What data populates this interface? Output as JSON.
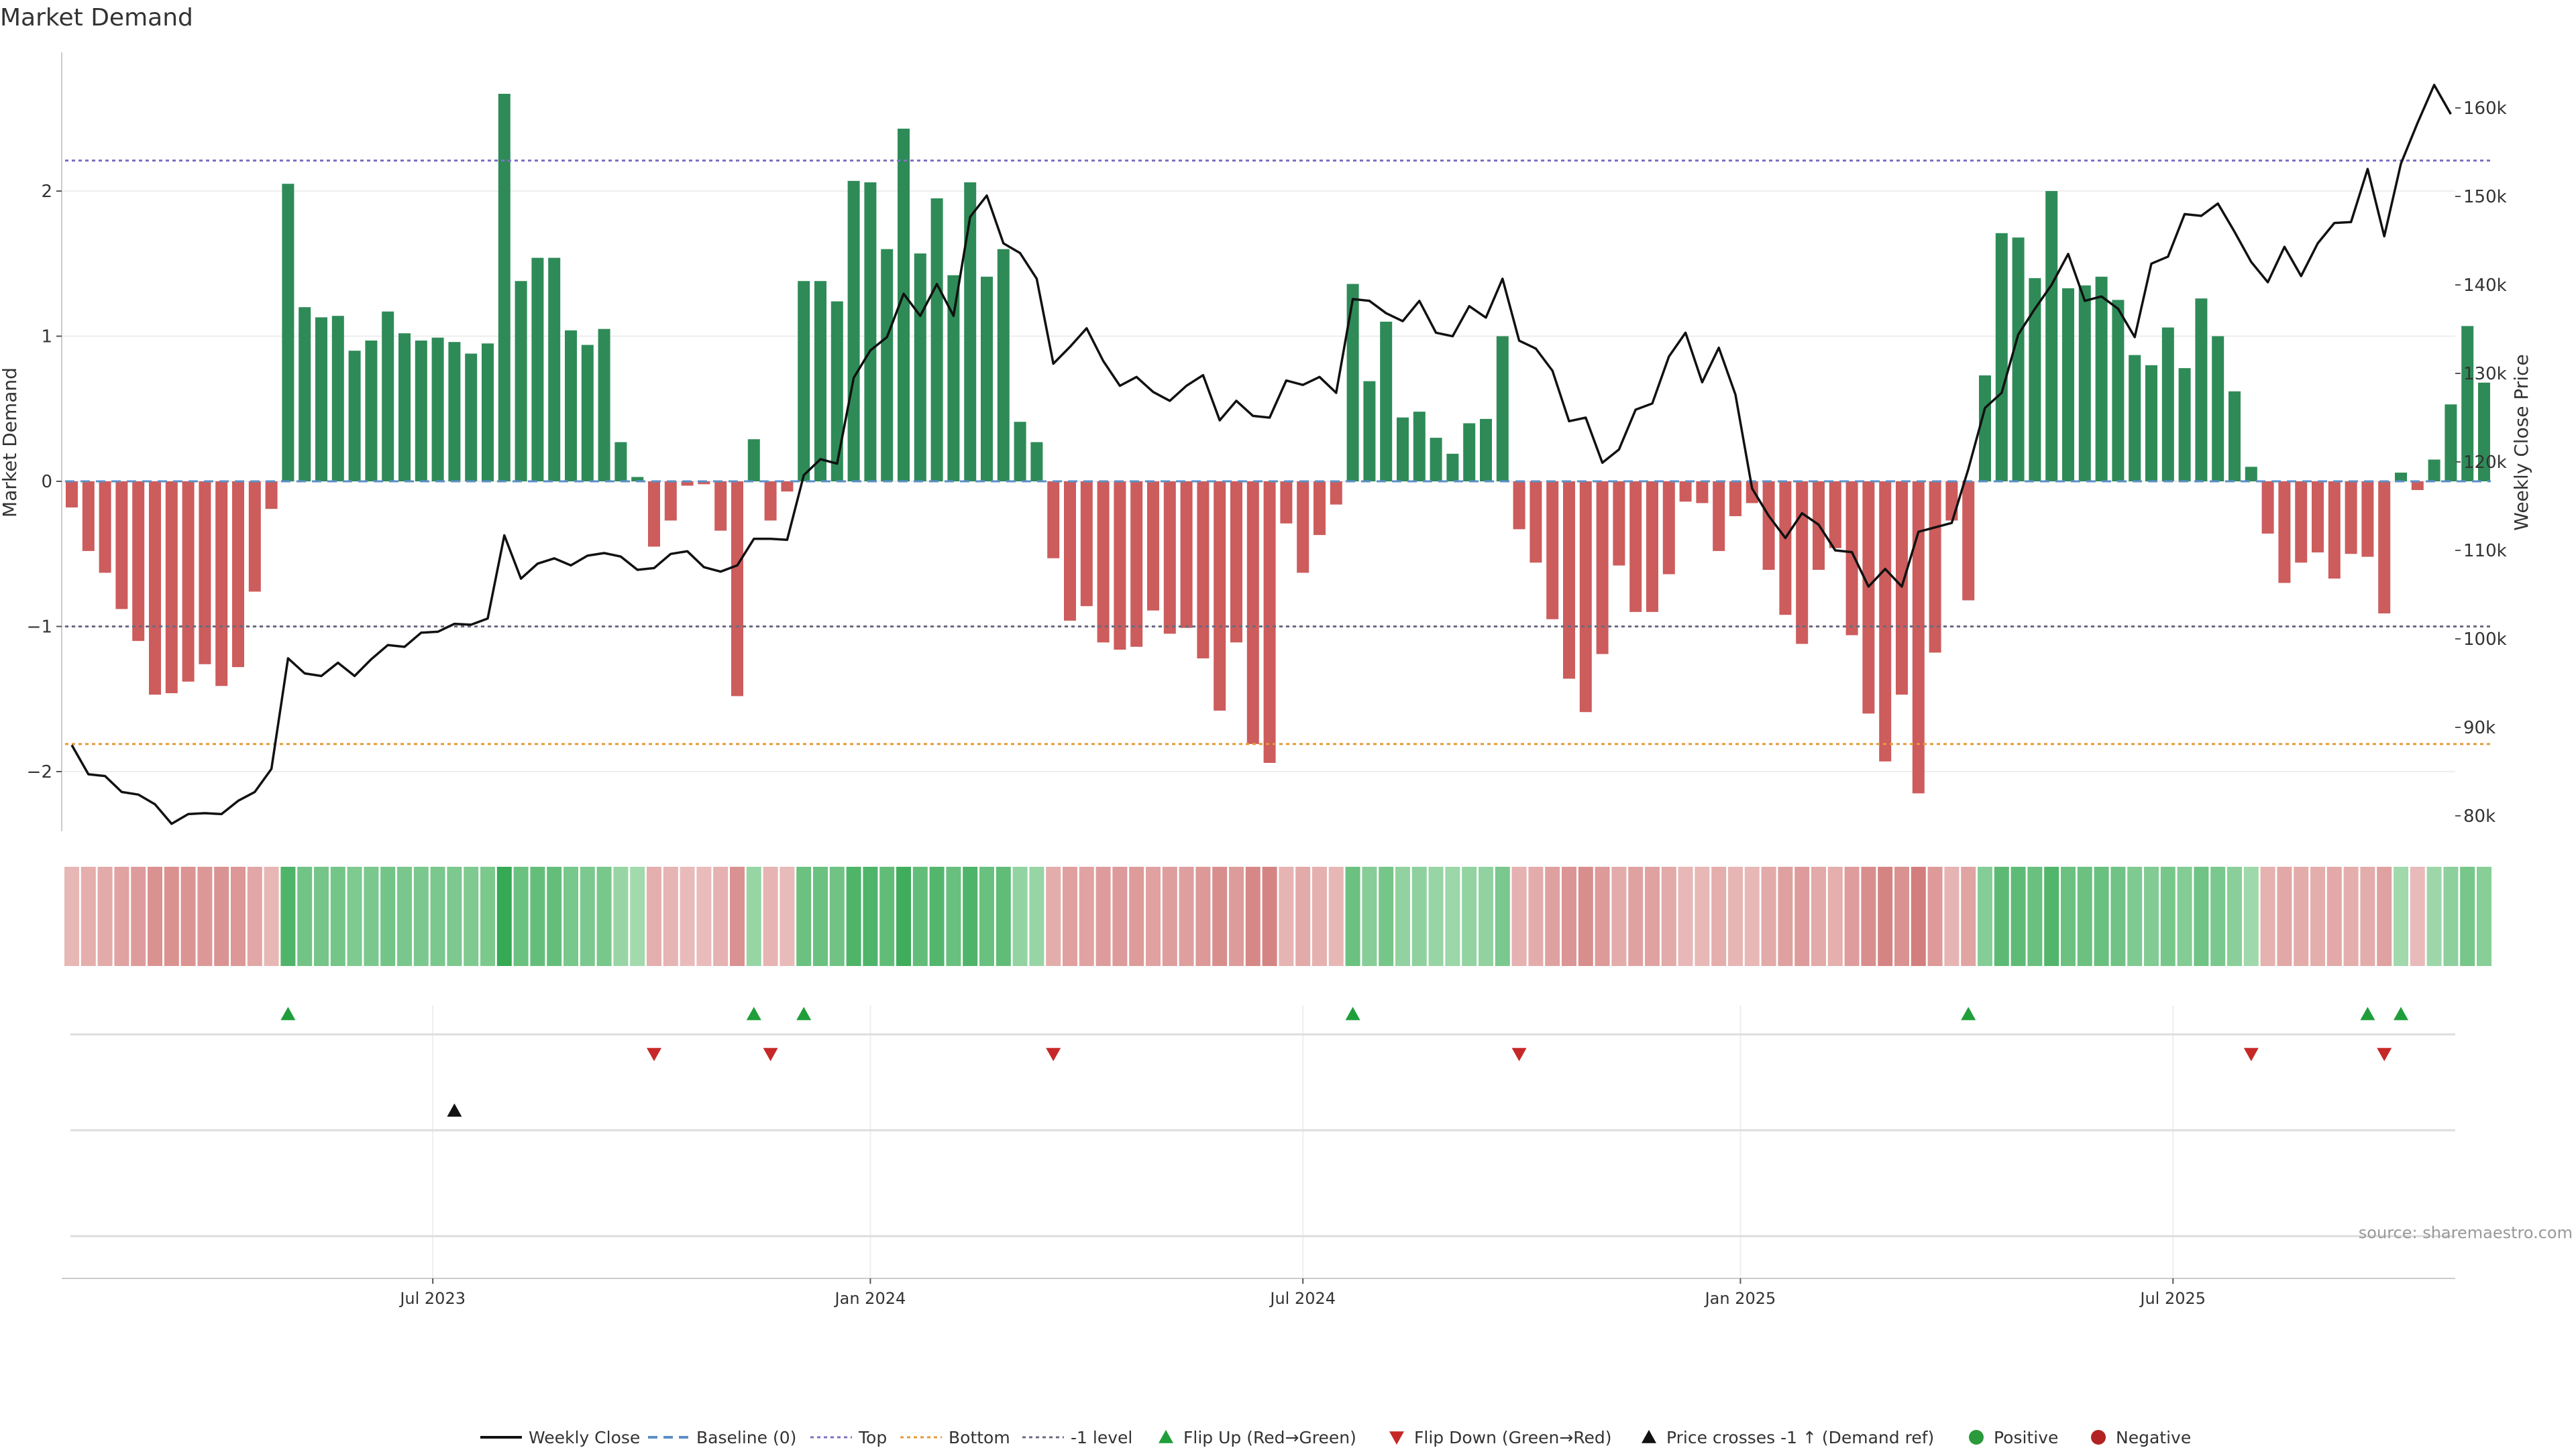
{
  "chart_data": {
    "type": "bar",
    "title": "Market Demand",
    "ylabel": "Market Demand",
    "y2label": "Weekly Close Price",
    "ylim": [
      -2.4,
      2.9
    ],
    "y2lim": [
      78000,
      163000
    ],
    "yticks": [
      "−2",
      "−1",
      "0",
      "1",
      "2"
    ],
    "ytick_values": [
      -2,
      -1,
      0,
      1,
      2
    ],
    "y2ticks": [
      "80k",
      "90k",
      "100k",
      "110k",
      "120k",
      "130k",
      "140k",
      "150k",
      "160k"
    ],
    "y2tick_values": [
      80000,
      90000,
      100000,
      110000,
      120000,
      130000,
      140000,
      150000,
      160000
    ],
    "xticks": [
      "Jul 2023",
      "Jan 2024",
      "Jul 2024",
      "Jan 2025",
      "Jul 2025"
    ],
    "xtick_weeks": [
      21.7,
      48,
      74,
      100.3,
      126.3
    ],
    "levels": {
      "top": 2.21,
      "minus_one": -1.0,
      "bottom": -1.81
    },
    "demand": [
      -0.18,
      -0.48,
      -0.63,
      -0.88,
      -1.1,
      -1.47,
      -1.46,
      -1.38,
      -1.26,
      -1.41,
      -1.28,
      -0.76,
      -0.19,
      2.05,
      1.2,
      1.13,
      1.14,
      0.9,
      0.97,
      1.17,
      1.02,
      0.97,
      0.99,
      0.96,
      0.88,
      0.95,
      2.67,
      1.38,
      1.54,
      1.54,
      1.04,
      0.94,
      1.05,
      0.27,
      0.03,
      -0.45,
      -0.27,
      -0.03,
      -0.02,
      -0.34,
      -1.48,
      0.29,
      -0.27,
      -0.07,
      1.38,
      1.38,
      1.24,
      2.07,
      2.06,
      1.6,
      2.43,
      1.57,
      1.95,
      1.42,
      2.06,
      1.41,
      1.6,
      0.41,
      0.27,
      -0.53,
      -0.96,
      -0.86,
      -1.11,
      -1.16,
      -1.14,
      -0.89,
      -1.05,
      -1.01,
      -1.22,
      -1.58,
      -1.11,
      -1.81,
      -1.94,
      -0.29,
      -0.63,
      -0.37,
      -0.16,
      1.36,
      0.69,
      1.1,
      0.44,
      0.48,
      0.3,
      0.19,
      0.4,
      0.43,
      1.0,
      -0.33,
      -0.56,
      -0.95,
      -1.36,
      -1.59,
      -1.19,
      -0.58,
      -0.9,
      -0.9,
      -0.64,
      -0.14,
      -0.15,
      -0.48,
      -0.24,
      -0.15,
      -0.61,
      -0.92,
      -1.12,
      -0.61,
      -0.46,
      -1.06,
      -1.6,
      -1.93,
      -1.47,
      -2.15,
      -1.18,
      -0.27,
      -0.82,
      0.73,
      1.71,
      1.68,
      1.4,
      2.0,
      1.33,
      1.35,
      1.41,
      1.25,
      0.87,
      0.8,
      1.06,
      0.78,
      1.26,
      1.0,
      0.62,
      0.1,
      -0.36,
      -0.7,
      -0.56,
      -0.49,
      -0.67,
      -0.5,
      -0.52,
      -0.91,
      0.06,
      -0.06,
      0.15,
      0.53,
      1.07,
      0.68
    ],
    "close": [
      88000,
      84700,
      84500,
      82700,
      82400,
      81300,
      79100,
      80200,
      80300,
      80200,
      81700,
      82700,
      85300,
      97800,
      96100,
      95800,
      97300,
      95800,
      97700,
      99300,
      99100,
      100700,
      100800,
      101700,
      101600,
      102300,
      111700,
      106800,
      108500,
      109100,
      108300,
      109400,
      109700,
      109300,
      107800,
      108000,
      109600,
      109900,
      108100,
      107600,
      108300,
      111300,
      111300,
      111200,
      118500,
      120300,
      119800,
      129500,
      132600,
      134100,
      139000,
      136500,
      140100,
      136500,
      147700,
      150100,
      144700,
      143600,
      140700,
      131100,
      133000,
      135100,
      131400,
      128600,
      129600,
      127900,
      126900,
      128600,
      129800,
      124700,
      126900,
      125200,
      125000,
      129200,
      128700,
      129600,
      127800,
      138400,
      138200,
      136800,
      135900,
      138200,
      134600,
      134200,
      137600,
      136300,
      140700,
      133700,
      132800,
      130300,
      124600,
      125000,
      119900,
      121400,
      125900,
      126600,
      131900,
      134600,
      129000,
      132900,
      127600,
      117000,
      113900,
      111400,
      114200,
      112900,
      110000,
      109800,
      105900,
      107900,
      105900,
      112100,
      112600,
      113100,
      119200,
      126100,
      127800,
      134400,
      137300,
      140000,
      143500,
      138200,
      138700,
      137300,
      134100,
      142400,
      143200,
      148000,
      147800,
      149200,
      146000,
      142600,
      140300,
      144300,
      141000,
      144700,
      147000,
      147100,
      153100,
      145500,
      153700,
      158300,
      162600,
      159300
    ],
    "flip_up_weeks": [
      13,
      41,
      44,
      77,
      114,
      138,
      140
    ],
    "flip_down_weeks": [
      35,
      42,
      59,
      87,
      131,
      139
    ],
    "price_cross_weeks": [
      23
    ],
    "legend": [
      "Weekly Close",
      "Baseline (0)",
      "Top",
      "Bottom",
      "-1 level",
      "Flip Up (Red→Green)",
      "Flip Down (Green→Red)",
      "Price crosses -1 ↑ (Demand ref)",
      "Positive",
      "Negative"
    ],
    "colors": {
      "positive_bar": "#2e8b57",
      "negative_bar": "#cd5c5c",
      "close_line": "#111111",
      "baseline": "#5b8fc7",
      "top": "#7d72c2",
      "bottom": "#e69a3a",
      "minus_one": "#6a6a80",
      "flip_up": "#1f9e3a",
      "flip_down": "#c62828",
      "cross": "#111111",
      "positive_dot": "#2b9a3a",
      "negative_dot": "#b22222"
    }
  },
  "source_note": "source: sharemaestro.com"
}
